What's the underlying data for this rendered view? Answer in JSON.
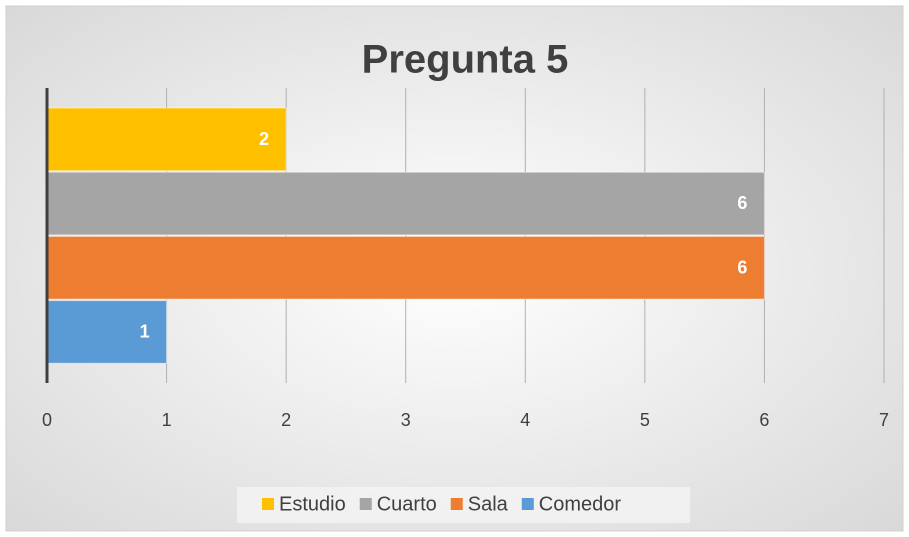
{
  "chart_data": {
    "type": "bar",
    "orientation": "horizontal",
    "title": "Pregunta 5",
    "categories": [
      null
    ],
    "series": [
      {
        "name": "Estudio",
        "color": "#ffc000",
        "values": [
          2
        ]
      },
      {
        "name": "Cuarto",
        "color": "#a5a5a5",
        "values": [
          6
        ]
      },
      {
        "name": "Sala",
        "color": "#ed7d31",
        "values": [
          6
        ]
      },
      {
        "name": "Comedor",
        "color": "#5b9bd5",
        "values": [
          1
        ]
      }
    ],
    "xlim": [
      0,
      7
    ],
    "xticks": [
      0,
      1,
      2,
      3,
      4,
      5,
      6,
      7
    ],
    "grid": true,
    "legend": "bottom"
  }
}
